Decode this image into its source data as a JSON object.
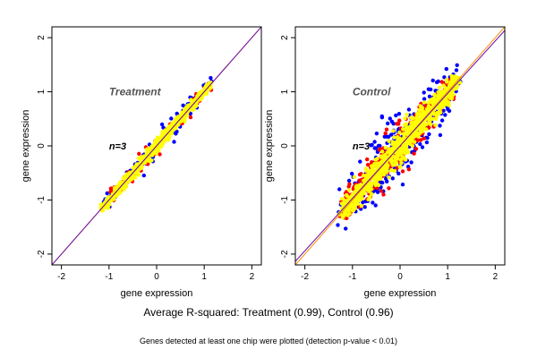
{
  "figure": {
    "caption": "Average R-squared: Treatment (0.99), Control (0.96)",
    "note": "Genes detected at least one chip were plotted (detection p-value < 0.01)"
  },
  "colors": {
    "blue": "#0000ff",
    "red": "#ff0000",
    "yellow": "#ffff00",
    "identity_line": "#ff8c00",
    "fit_line": "#6a0dad"
  },
  "chart_data": [
    {
      "type": "scatter",
      "title": "Treatment",
      "annotation": "n=3",
      "xlabel": "gene expression",
      "ylabel": "gene expression",
      "xlim": [
        -2.2,
        2.2
      ],
      "ylim": [
        -2.2,
        2.2
      ],
      "xticks": [
        "-2",
        "-1",
        "0",
        "1",
        "2"
      ],
      "yticks": [
        "-2",
        "-1",
        "0",
        "1",
        "2"
      ],
      "grid": false,
      "legend": "none",
      "spread": 0.07,
      "series": [
        {
          "color_key": "blue",
          "range": [
            -1.2,
            1.2
          ],
          "spread": 0.08,
          "count": 120
        },
        {
          "color_key": "red",
          "range": [
            -1.1,
            1.1
          ],
          "spread": 0.06,
          "count": 100
        },
        {
          "color_key": "yellow",
          "range": [
            -1.15,
            1.15
          ],
          "spread": 0.045,
          "count": 600
        }
      ],
      "lines": [
        {
          "color_key": "identity_line",
          "slope": 1.0,
          "intercept": 0.0
        },
        {
          "color_key": "fit_line",
          "slope": 1.0,
          "intercept": 0.0
        }
      ]
    },
    {
      "type": "scatter",
      "title": "Control",
      "annotation": "n=3",
      "xlabel": "gene expression",
      "ylabel": "gene expression",
      "xlim": [
        -2.2,
        2.2
      ],
      "ylim": [
        -2.2,
        2.2
      ],
      "xticks": [
        "-2",
        "-1",
        "0",
        "1",
        "2"
      ],
      "yticks": [
        "-2",
        "-1",
        "0",
        "1",
        "2"
      ],
      "grid": false,
      "legend": "none",
      "series": [
        {
          "color_key": "blue",
          "range": [
            -1.2,
            1.2
          ],
          "spread": 0.22,
          "count": 350
        },
        {
          "color_key": "red",
          "range": [
            -1.15,
            1.15
          ],
          "spread": 0.16,
          "count": 350
        },
        {
          "color_key": "yellow",
          "range": [
            -1.2,
            1.2
          ],
          "spread": 0.11,
          "count": 800
        }
      ],
      "lines": [
        {
          "color_key": "identity_line",
          "slope": 1.0,
          "intercept": 0.0
        },
        {
          "color_key": "fit_line",
          "slope": 0.97,
          "intercept": 0.0
        }
      ]
    }
  ]
}
